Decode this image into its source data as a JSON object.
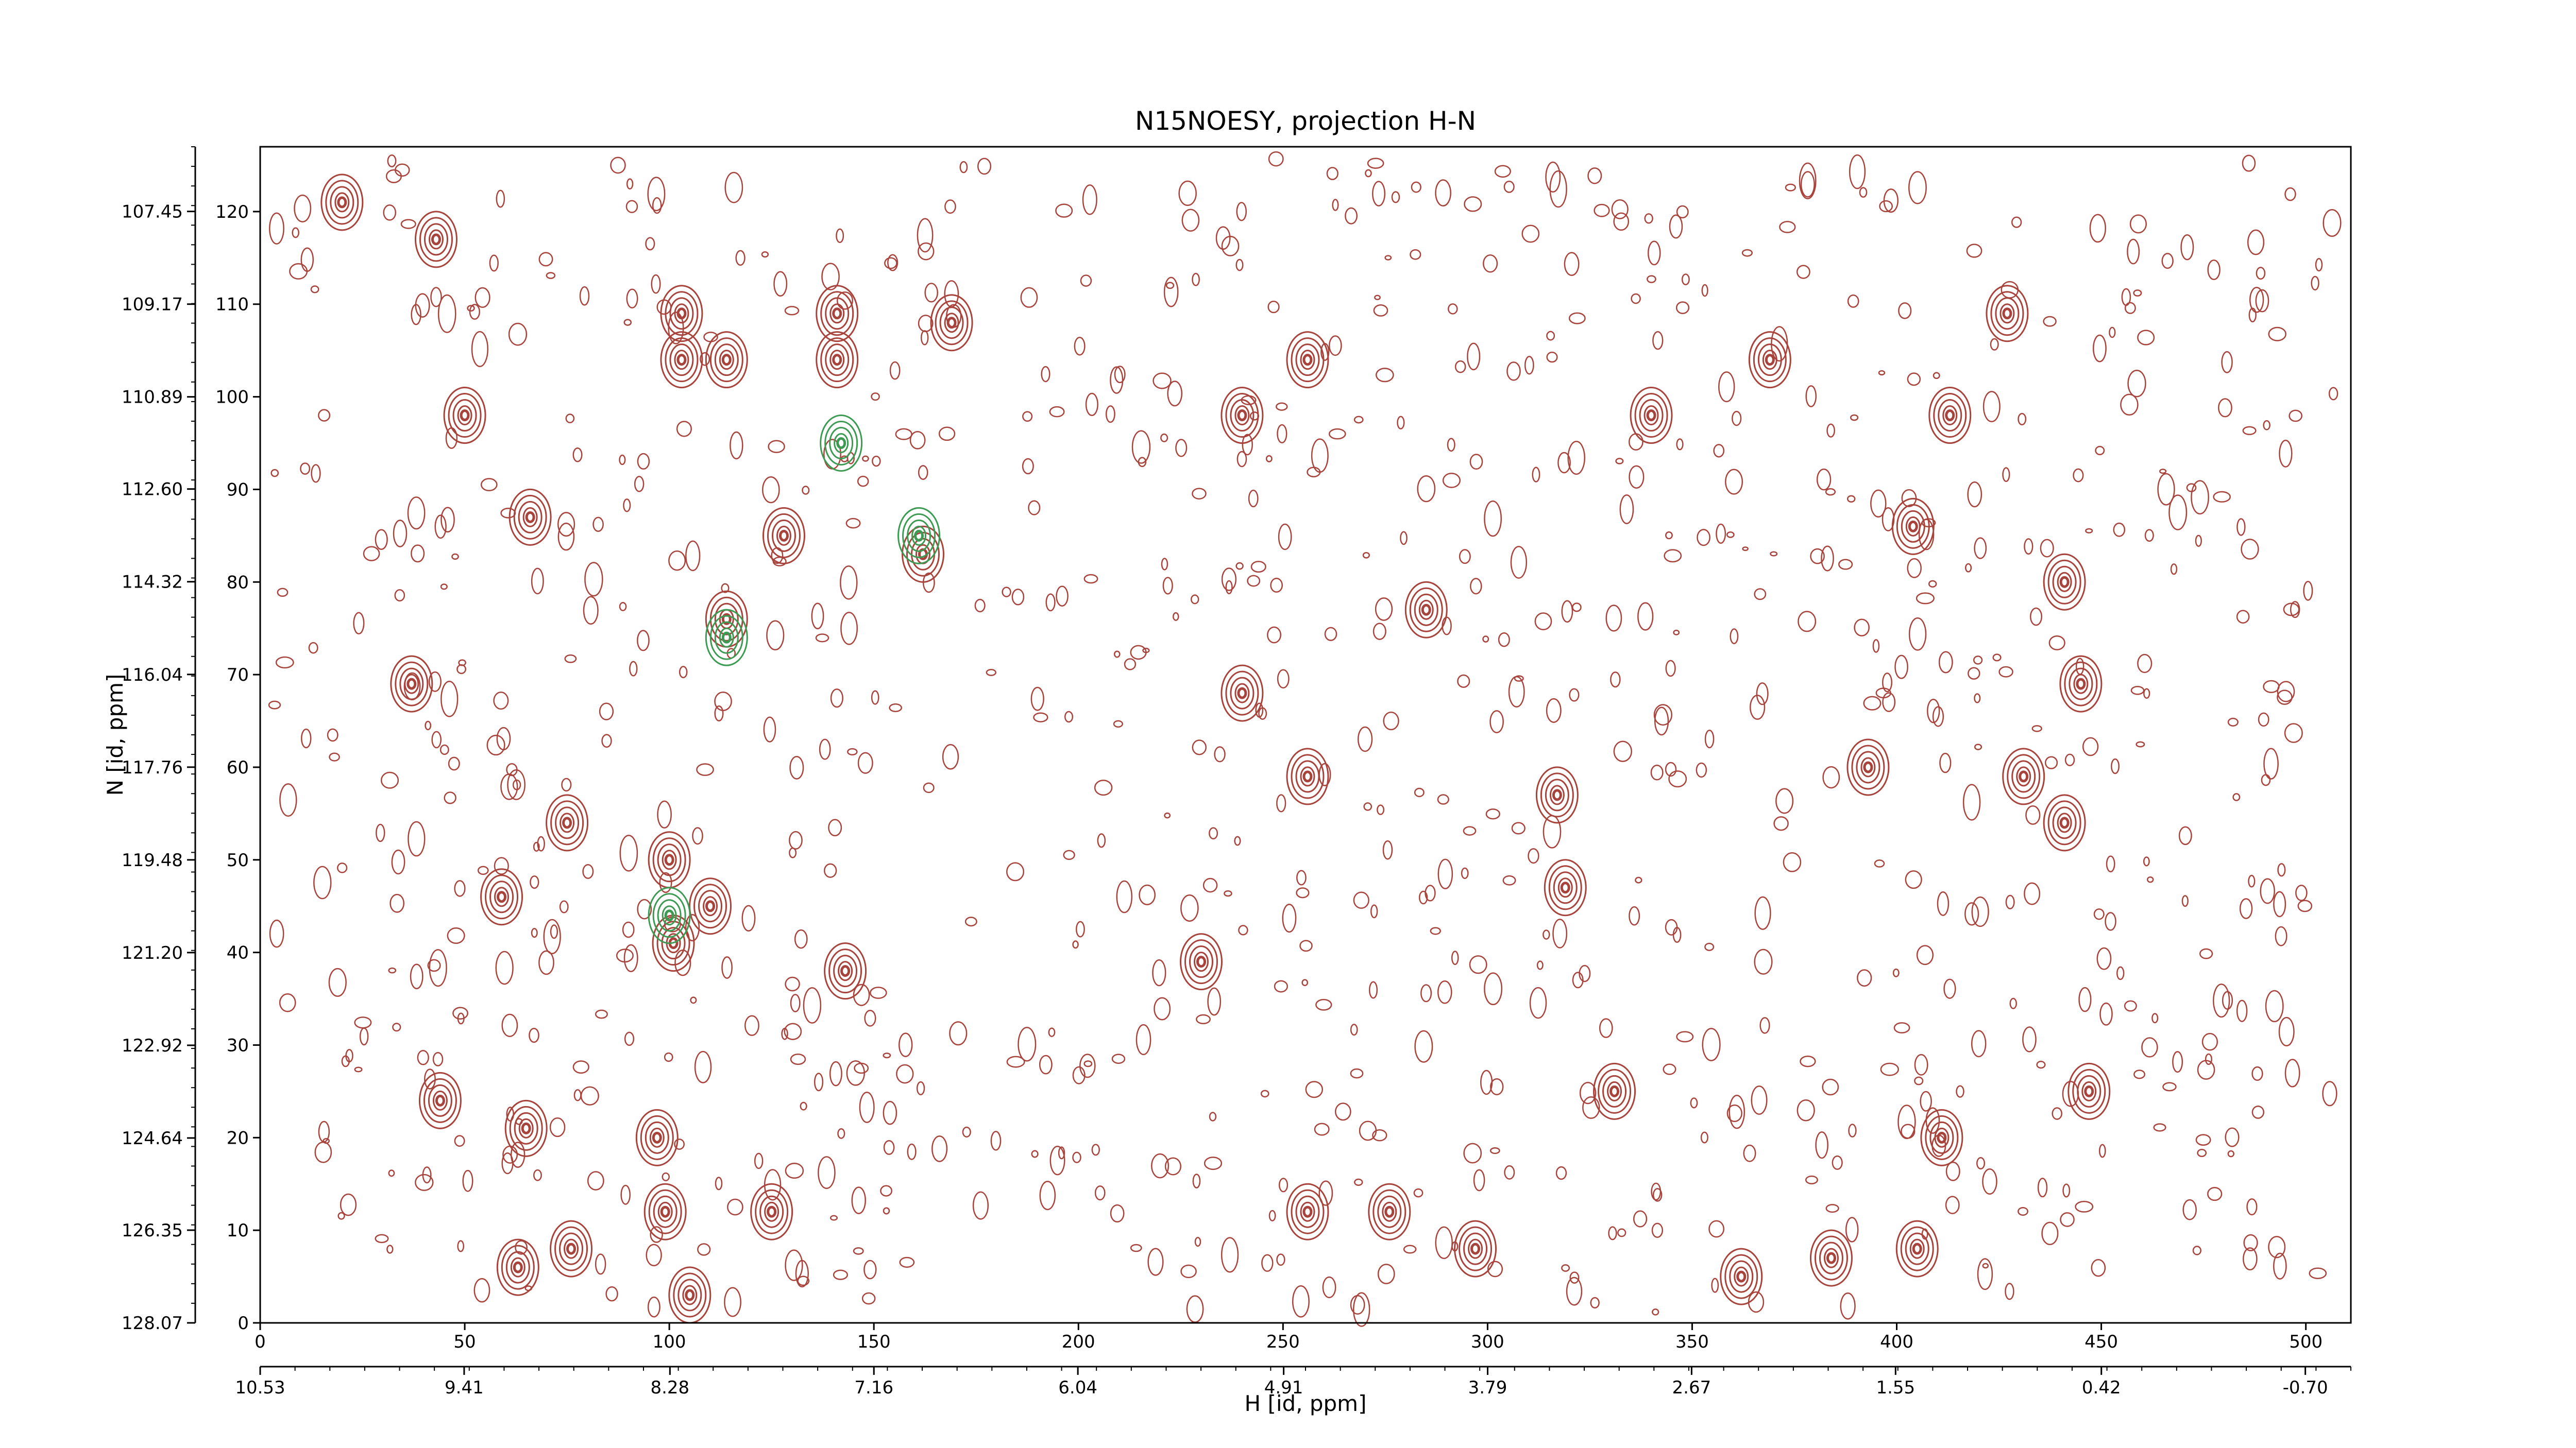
{
  "chart_data": {
    "type": "contour",
    "title": "N15NOESY, projection H-N",
    "xlabel": "H [id, ppm]",
    "ylabel": "N [id, ppm]",
    "xlim": [
      0,
      511
    ],
    "ylim": [
      0,
      127
    ],
    "xticks": [
      0,
      50,
      100,
      150,
      200,
      250,
      300,
      350,
      400,
      450,
      500
    ],
    "yticks": [
      0,
      10,
      20,
      30,
      40,
      50,
      60,
      70,
      80,
      90,
      100,
      110,
      120
    ],
    "x2lim": [
      10.53,
      -0.95
    ],
    "y2lim": [
      128.07,
      106.25
    ],
    "x2ticks": [
      10.53,
      9.41,
      8.28,
      7.16,
      6.04,
      4.91,
      3.79,
      2.67,
      1.55,
      0.42,
      {
        "value": -0.7,
        "label": "-0.70"
      }
    ],
    "y2ticks": [
      128.07,
      126.35,
      124.64,
      122.92,
      {
        "value": 121.2,
        "label": "121.20"
      },
      119.48,
      117.76,
      116.04,
      114.32,
      {
        "value": 112.6,
        "label": "112.60"
      },
      110.89,
      109.17,
      107.45
    ],
    "series": [
      {
        "color": "#a8433b",
        "x": [
          20,
          43,
          103,
          103,
          114,
          141,
          141,
          169,
          50,
          66,
          128,
          162,
          37,
          114,
          75,
          100,
          110,
          59,
          101,
          143,
          230,
          44,
          65,
          97,
          99,
          125,
          63,
          76,
          105,
          256,
          256,
          256,
          240,
          240,
          317,
          393,
          431,
          445,
          447,
          411,
          405,
          384,
          362,
          297,
          276,
          340,
          413,
          427,
          369,
          404,
          441,
          285,
          319,
          331,
          441
        ],
        "values": [
          121,
          117,
          109,
          104,
          104,
          109,
          104,
          108,
          98,
          87,
          85,
          83,
          69,
          76,
          54,
          50,
          45,
          46,
          41,
          38,
          39,
          24,
          21,
          20,
          12,
          12,
          6,
          8,
          3,
          59,
          12,
          104,
          98,
          68,
          57,
          60,
          59,
          69,
          25,
          20,
          8,
          7,
          5,
          8,
          12,
          98,
          98,
          109,
          104,
          86,
          80,
          77,
          47,
          25,
          54
        ]
      },
      {
        "color": "#3c9a52",
        "x": [
          114,
          142,
          161,
          100
        ],
        "values": [
          74,
          95,
          85,
          44
        ]
      }
    ]
  }
}
